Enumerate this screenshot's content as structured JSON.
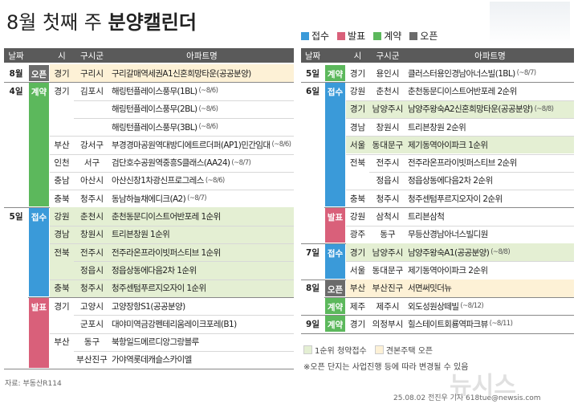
{
  "header": {
    "title": "8월 첫째 주",
    "title_bold": "분양캘린더"
  },
  "legend": [
    {
      "label": "접수",
      "color": "#3a9ad9"
    },
    {
      "label": "발표",
      "color": "#d9607a"
    },
    {
      "label": "계약",
      "color": "#5cb85c"
    },
    {
      "label": "오픈",
      "color": "#6b6b6b"
    }
  ],
  "columns": [
    "날짜",
    "시",
    "구시군",
    "아파트명"
  ],
  "tables": [
    {
      "blocks": [
        {
          "date": "8월",
          "status": "오픈",
          "rows": [
            {
              "sido": "경기",
              "sigungu": "구리시",
              "name": "구리갈매역세권A1신혼희망타운(공공분양)",
              "bg": "#fdf1d6"
            }
          ]
        },
        {
          "date": "4일",
          "status": "계약",
          "rows": [
            {
              "sido": "경기",
              "sigungu": "김포시",
              "name": "해링턴플레이스풍무(1BL)",
              "note": "(~8/6)"
            },
            {
              "name": "해링턴플레이스풍무(2BL)",
              "note": "(~8/6)"
            },
            {
              "name": "해링턴플레이스풍무(3BL)",
              "note": "(~8/6)"
            },
            {
              "sido": "부산",
              "sigungu": "강서구",
              "name": "부경경마공원역대방디에트르더퍼(AP1)민간임대",
              "note": "(~8/6)"
            },
            {
              "sido": "인천",
              "sigungu": "서구",
              "name": "검단호수공원역중흥S클래스(AA24)",
              "note": "(~8/7)"
            },
            {
              "sido": "충남",
              "sigungu": "아산시",
              "name": "아산신창1차광신프로그레스",
              "note": "(~8/6)"
            },
            {
              "sido": "충북",
              "sigungu": "청주시",
              "name": "동남하늘채에디크(A2)",
              "note": "(~8/7)"
            }
          ]
        },
        {
          "date": "5일",
          "status": "접수",
          "rows": [
            {
              "sido": "강원",
              "sigungu": "춘천시",
              "name": "춘천동문디이스트어반포레 1순위",
              "bg": "#e4efd3"
            },
            {
              "sido": "경남",
              "sigungu": "창원시",
              "name": "트리븐창원 1순위",
              "bg": "#e4efd3"
            },
            {
              "sido": "전북",
              "sigungu": "전주시",
              "name": "전주라온프라이빗퍼스티브 1순위",
              "bg": "#e4efd3"
            },
            {
              "sigungu": "정읍시",
              "name": "정읍상동에다음2차 1순위",
              "bg": "#e4efd3"
            },
            {
              "sido": "충북",
              "sigungu": "청주시",
              "name": "청주센텀푸르지오자이 1순위",
              "bg": "#e4efd3"
            }
          ]
        },
        {
          "status": "발표",
          "rows": [
            {
              "sido": "경기",
              "sigungu": "고양시",
              "name": "고양장항S1(공공분양)"
            },
            {
              "sigungu": "군포시",
              "name": "대야미역금강펜테리움레이크포레(B1)"
            },
            {
              "sido": "부산",
              "sigungu": "동구",
              "name": "북항일드메르디앙그랑블루"
            },
            {
              "sigungu": "부산진구",
              "name": "가야역롯데캐슬스카이엘"
            }
          ]
        }
      ]
    },
    {
      "blocks": [
        {
          "date": "5일",
          "status": "계약",
          "rows": [
            {
              "sido": "경기",
              "sigungu": "용인시",
              "name": "클러스터용인경남아너스빌(1BL)",
              "note": "(~8/7)"
            }
          ]
        },
        {
          "date": "6일",
          "status": "접수",
          "rows": [
            {
              "sido": "강원",
              "sigungu": "춘천시",
              "name": "춘천동문디이스트어반포레 2순위"
            },
            {
              "sido": "경기",
              "sigungu": "남양주시",
              "name": "남양주왕숙A2신혼희망타운(공공분양)",
              "note": "(~8/8)",
              "bg": "#e4efd3"
            },
            {
              "sido": "경남",
              "sigungu": "창원시",
              "name": "트리븐창원 2순위"
            },
            {
              "sido": "서울",
              "sigungu": "동대문구",
              "name": "제기동역아이파크 1순위",
              "bg": "#e4efd3"
            },
            {
              "sido": "전북",
              "sigungu": "전주시",
              "name": "전주라온프라이빗퍼스티브 2순위"
            },
            {
              "sigungu": "정읍시",
              "name": "정읍상동에다음2차 2순위"
            },
            {
              "sido": "충북",
              "sigungu": "청주시",
              "name": "청주센텀푸르지오자이 2순위"
            }
          ]
        },
        {
          "status": "발표",
          "rows": [
            {
              "sido": "강원",
              "sigungu": "삼척시",
              "name": "트리븐삼척"
            },
            {
              "sido": "광주",
              "sigungu": "동구",
              "name": "무등산경남아너스빌디원"
            }
          ]
        },
        {
          "date": "7일",
          "status": "접수",
          "rows": [
            {
              "sido": "경기",
              "sigungu": "남양주시",
              "name": "남양주왕숙A1(공공분양)",
              "note": "(~8/8)",
              "bg": "#e4efd3"
            },
            {
              "sido": "서울",
              "sigungu": "동대문구",
              "name": "제기동역아이파크 2순위"
            }
          ]
        },
        {
          "date": "8일",
          "status": "오픈",
          "rows": [
            {
              "sido": "부산",
              "sigungu": "부산진구",
              "name": "서면써밋더뉴",
              "bg": "#fdf1d6"
            }
          ]
        },
        {
          "status": "계약",
          "rows": [
            {
              "sido": "제주",
              "sigungu": "제주시",
              "name": "외도성원상떼빌",
              "note": "(~8/12)"
            }
          ]
        },
        {
          "date": "9일",
          "status": "계약",
          "rows": [
            {
              "sido": "경기",
              "sigungu": "의정부시",
              "name": "힐스테이트회룡역파크뷰",
              "note": "(~8/11)"
            }
          ]
        }
      ]
    }
  ],
  "footer": {
    "highlight_legend": [
      {
        "label": "1순위 청약접수",
        "color": "#e4efd3"
      },
      {
        "label": "견본주택 오픈",
        "color": "#fdf1d6"
      }
    ],
    "disclaimer": "※오픈 단지는 사업진행 등에 따라 변경될 수 있음",
    "source": "자료: 부동산R114",
    "credit": "25.08.02 전진우 기자 618tue@newsis.com",
    "watermark": "뉴시스"
  }
}
